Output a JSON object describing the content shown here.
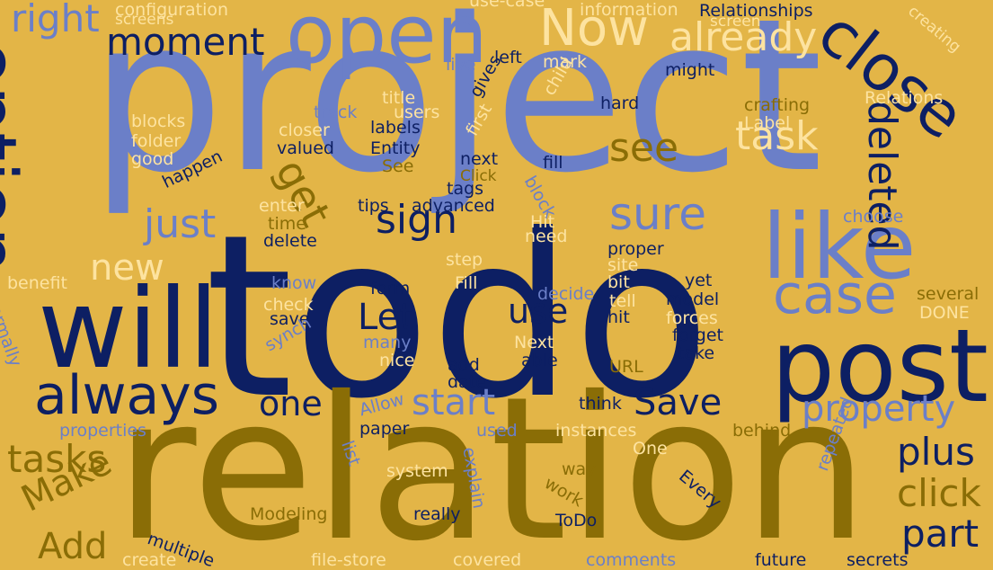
{
  "colors": {
    "background": "#e3b547",
    "navy": "#0d1f63",
    "periwinkle": "#6b7fc8",
    "olive": "#8a6d06",
    "cream": "#fde3a0"
  },
  "words": [
    {
      "text": "project",
      "color": "periwinkle"
    },
    {
      "text": "todo",
      "color": "navy"
    },
    {
      "text": "relation",
      "color": "olive"
    },
    {
      "text": "post",
      "color": "navy"
    },
    {
      "text": "will",
      "color": "navy"
    },
    {
      "text": "open",
      "color": "periwinkle"
    },
    {
      "text": "like",
      "color": "periwinkle"
    },
    {
      "text": "option",
      "color": "navy"
    },
    {
      "text": "close",
      "color": "navy"
    },
    {
      "text": "always",
      "color": "navy"
    },
    {
      "text": "Now",
      "color": "cream"
    },
    {
      "text": "already",
      "color": "cream"
    },
    {
      "text": "moment",
      "color": "navy"
    },
    {
      "text": "right",
      "color": "periwinkle"
    },
    {
      "text": "get",
      "color": "olive"
    },
    {
      "text": "task",
      "color": "cream"
    },
    {
      "text": "see",
      "color": "olive"
    },
    {
      "text": "sure",
      "color": "periwinkle"
    },
    {
      "text": "case",
      "color": "periwinkle"
    },
    {
      "text": "deleted",
      "color": "navy"
    },
    {
      "text": "sign",
      "color": "navy"
    },
    {
      "text": "just",
      "color": "periwinkle"
    },
    {
      "text": "new",
      "color": "cream"
    },
    {
      "text": "Let",
      "color": "navy"
    },
    {
      "text": "use",
      "color": "navy"
    },
    {
      "text": "one",
      "color": "navy"
    },
    {
      "text": "start",
      "color": "periwinkle"
    },
    {
      "text": "Save",
      "color": "navy"
    },
    {
      "text": "property",
      "color": "periwinkle"
    },
    {
      "text": "plus",
      "color": "navy"
    },
    {
      "text": "click",
      "color": "olive"
    },
    {
      "text": "part",
      "color": "navy"
    },
    {
      "text": "tasks",
      "color": "olive"
    },
    {
      "text": "Make",
      "color": "olive"
    },
    {
      "text": "Add",
      "color": "olive"
    },
    {
      "text": "configuration",
      "color": "cream"
    },
    {
      "text": "screens",
      "color": "cream"
    },
    {
      "text": "use-case",
      "color": "cream"
    },
    {
      "text": "information",
      "color": "cream"
    },
    {
      "text": "Relationships",
      "color": "navy"
    },
    {
      "text": "screen",
      "color": "cream"
    },
    {
      "text": "creating",
      "color": "cream"
    },
    {
      "text": "live",
      "color": "periwinkle"
    },
    {
      "text": "left",
      "color": "navy"
    },
    {
      "text": "mark",
      "color": "cream"
    },
    {
      "text": "might",
      "color": "navy"
    },
    {
      "text": "title",
      "color": "cream"
    },
    {
      "text": "gives",
      "color": "navy"
    },
    {
      "text": "child",
      "color": "cream"
    },
    {
      "text": "hard",
      "color": "navy"
    },
    {
      "text": "crafting",
      "color": "olive"
    },
    {
      "text": "Relations",
      "color": "cream"
    },
    {
      "text": "blocks",
      "color": "cream"
    },
    {
      "text": "track",
      "color": "periwinkle"
    },
    {
      "text": "users",
      "color": "cream"
    },
    {
      "text": "closer",
      "color": "cream"
    },
    {
      "text": "labels",
      "color": "navy"
    },
    {
      "text": "Label",
      "color": "cream"
    },
    {
      "text": "folder",
      "color": "cream"
    },
    {
      "text": "valued",
      "color": "navy"
    },
    {
      "text": "Entity",
      "color": "navy"
    },
    {
      "text": "first",
      "color": "cream"
    },
    {
      "text": "good",
      "color": "cream"
    },
    {
      "text": "See",
      "color": "olive"
    },
    {
      "text": "next",
      "color": "navy"
    },
    {
      "text": "Click",
      "color": "olive"
    },
    {
      "text": "fill",
      "color": "navy"
    },
    {
      "text": "happen",
      "color": "navy"
    },
    {
      "text": "tags",
      "color": "navy"
    },
    {
      "text": "block",
      "color": "periwinkle"
    },
    {
      "text": "enter",
      "color": "cream"
    },
    {
      "text": "tips",
      "color": "navy"
    },
    {
      "text": "advanced",
      "color": "navy"
    },
    {
      "text": "Hit",
      "color": "cream"
    },
    {
      "text": "choose",
      "color": "periwinkle"
    },
    {
      "text": "time",
      "color": "olive"
    },
    {
      "text": "need",
      "color": "cream"
    },
    {
      "text": "delete",
      "color": "navy"
    },
    {
      "text": "proper",
      "color": "navy"
    },
    {
      "text": "step",
      "color": "cream"
    },
    {
      "text": "site",
      "color": "cream"
    },
    {
      "text": "benefit",
      "color": "cream"
    },
    {
      "text": "know",
      "color": "periwinkle"
    },
    {
      "text": "Fill",
      "color": "cream"
    },
    {
      "text": "bit",
      "color": "cream"
    },
    {
      "text": "yet",
      "color": "navy"
    },
    {
      "text": "form",
      "color": "navy"
    },
    {
      "text": "decide",
      "color": "periwinkle"
    },
    {
      "text": "tell",
      "color": "cream"
    },
    {
      "text": "several",
      "color": "olive"
    },
    {
      "text": "normally",
      "color": "periwinkle"
    },
    {
      "text": "check",
      "color": "cream"
    },
    {
      "text": "model",
      "color": "navy"
    },
    {
      "text": "save",
      "color": "navy"
    },
    {
      "text": "hit",
      "color": "navy"
    },
    {
      "text": "forces",
      "color": "cream"
    },
    {
      "text": "DONE",
      "color": "cream"
    },
    {
      "text": "synch",
      "color": "periwinkle"
    },
    {
      "text": "many",
      "color": "periwinkle"
    },
    {
      "text": "forget",
      "color": "navy"
    },
    {
      "text": "Next",
      "color": "cream"
    },
    {
      "text": "nice",
      "color": "cream"
    },
    {
      "text": "take",
      "color": "navy"
    },
    {
      "text": "able",
      "color": "navy"
    },
    {
      "text": "add",
      "color": "navy"
    },
    {
      "text": "URL",
      "color": "olive"
    },
    {
      "text": "date",
      "color": "navy"
    },
    {
      "text": "think",
      "color": "navy"
    },
    {
      "text": "Allow",
      "color": "periwinkle"
    },
    {
      "text": "paper",
      "color": "navy"
    },
    {
      "text": "properties",
      "color": "periwinkle"
    },
    {
      "text": "used",
      "color": "periwinkle"
    },
    {
      "text": "instances",
      "color": "cream"
    },
    {
      "text": "behind",
      "color": "olive"
    },
    {
      "text": "list",
      "color": "periwinkle"
    },
    {
      "text": "One",
      "color": "cream"
    },
    {
      "text": "system",
      "color": "cream"
    },
    {
      "text": "explain",
      "color": "periwinkle"
    },
    {
      "text": "way",
      "color": "olive"
    },
    {
      "text": "work",
      "color": "olive"
    },
    {
      "text": "Every",
      "color": "navy"
    },
    {
      "text": "repeated",
      "color": "periwinkle"
    },
    {
      "text": "Modeling",
      "color": "olive"
    },
    {
      "text": "really",
      "color": "navy"
    },
    {
      "text": "ToDo",
      "color": "navy"
    },
    {
      "text": "multiple",
      "color": "navy"
    },
    {
      "text": "create",
      "color": "cream"
    },
    {
      "text": "file-store",
      "color": "cream"
    },
    {
      "text": "covered",
      "color": "cream"
    },
    {
      "text": "comments",
      "color": "periwinkle"
    },
    {
      "text": "future",
      "color": "navy"
    },
    {
      "text": "secrets",
      "color": "navy"
    }
  ]
}
